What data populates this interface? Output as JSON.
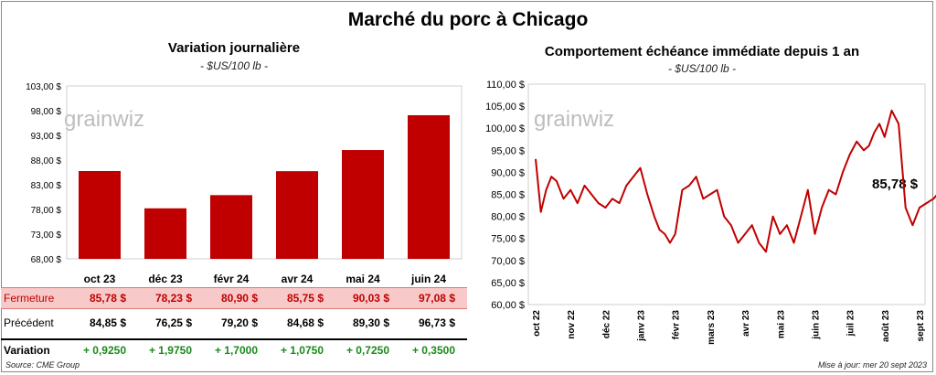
{
  "title": "Marché du porc à Chicago",
  "left": {
    "subtitle": "Variation journalière",
    "units": "- $US/100 lb -",
    "watermark": "grainwiz",
    "chart_data": {
      "type": "bar",
      "categories": [
        "oct 23",
        "déc 23",
        "févr 24",
        "avr 24",
        "mai 24",
        "juin 24"
      ],
      "values": [
        85.78,
        78.23,
        80.9,
        85.75,
        90.03,
        97.08
      ],
      "ylim": [
        68,
        103
      ],
      "yticks": [
        "68,00 $",
        "73,00 $",
        "78,00 $",
        "83,00 $",
        "88,00 $",
        "93,00 $",
        "98,00 $",
        "103,00 $"
      ],
      "color": "#c00000",
      "grid": false
    },
    "table": {
      "close_label": "Fermeture",
      "close": [
        "85,78 $",
        "78,23 $",
        "80,90 $",
        "85,75 $",
        "90,03 $",
        "97,08 $"
      ],
      "prev_label": "Précédent",
      "prev": [
        "84,85 $",
        "76,25 $",
        "79,20 $",
        "84,68 $",
        "89,30 $",
        "96,73 $"
      ],
      "var_label": "Variation",
      "var": [
        "+ 0,9250",
        "+ 1,9750",
        "+ 1,7000",
        "+ 1,0750",
        "+ 0,7250",
        "+ 0,3500"
      ]
    },
    "source": "Source: CME Group"
  },
  "right": {
    "subtitle": "Comportement  échéance immédiate depuis 1 an",
    "units": "- $US/100 lb -",
    "watermark": "grainwiz",
    "last_value_label": "85,78 $",
    "chart_data": {
      "type": "line",
      "xticks": [
        "oct 22",
        "nov 22",
        "déc 22",
        "janv 23",
        "févr 23",
        "mars 23",
        "avr 23",
        "mai 23",
        "juin 23",
        "juil 23",
        "août 23",
        "sept 23"
      ],
      "ylim": [
        60,
        110
      ],
      "yticks": [
        "60,00 $",
        "65,00 $",
        "70,00 $",
        "75,00 $",
        "80,00 $",
        "85,00 $",
        "90,00 $",
        "95,00 $",
        "100,00 $",
        "105,00 $",
        "110,00 $"
      ],
      "color": "#c00000",
      "grid": false,
      "series": [
        {
          "x_index": [
            0,
            0.15,
            0.3,
            0.45,
            0.6,
            0.8,
            1,
            1.2,
            1.4,
            1.6,
            1.8,
            2,
            2.2,
            2.4,
            2.6,
            2.8,
            3,
            3.2,
            3.4,
            3.55,
            3.7,
            3.85,
            4,
            4.2,
            4.4,
            4.6,
            4.8,
            5,
            5.2,
            5.4,
            5.6,
            5.8,
            6,
            6.2,
            6.4,
            6.6,
            6.8,
            7,
            7.2,
            7.4,
            7.6,
            7.8,
            8,
            8.2,
            8.4,
            8.6,
            8.8,
            9,
            9.2,
            9.4,
            9.55,
            9.7,
            9.85,
            10,
            10.2,
            10.4,
            10.6,
            10.8,
            11,
            11.2,
            11.4,
            11.6
          ],
          "values": [
            93,
            81,
            86,
            89,
            88,
            84,
            86,
            83,
            87,
            85,
            83,
            82,
            84,
            83,
            87,
            89,
            91,
            85,
            80,
            77,
            76,
            74,
            76,
            86,
            87,
            89,
            84,
            85,
            86,
            80,
            78,
            74,
            76,
            78,
            74,
            72,
            80,
            76,
            78,
            74,
            80,
            86,
            76,
            82,
            86,
            85,
            90,
            94,
            97,
            95,
            96,
            99,
            101,
            98,
            104,
            101,
            82,
            78,
            82,
            83,
            84,
            85.78
          ]
        }
      ]
    },
    "update": "Mise à jour: mer 20 sept 2023"
  }
}
